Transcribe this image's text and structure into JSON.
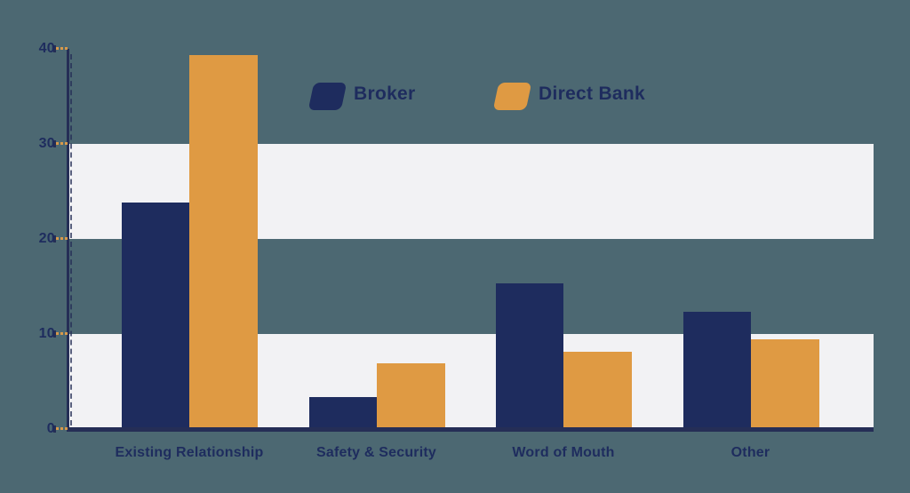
{
  "chart_data": {
    "type": "bar",
    "title": "",
    "xlabel": "",
    "ylabel": "",
    "categories": [
      "Existing Relationship",
      "Safety & Security",
      "Word of Mouth",
      "Other"
    ],
    "series": [
      {
        "name": "Broker",
        "color": "#1e2c5e",
        "values": [
          23.8,
          3.4,
          15.3,
          12.3
        ]
      },
      {
        "name": "Direct Bank",
        "color": "#df9a43",
        "values": [
          39.3,
          6.9,
          8.1,
          9.4
        ]
      }
    ],
    "ylim": [
      0,
      40
    ],
    "yticks": [
      0,
      10,
      20,
      30,
      40
    ],
    "grid": "alternating-horizontal-bands",
    "band_value_ranges": [
      [
        20,
        30
      ],
      [
        0,
        10
      ]
    ],
    "legend_position": "top-center",
    "colors": {
      "background": "#4c6872",
      "band": "#f2f2f4",
      "axis": "#252e56",
      "tick": "#d8994a",
      "label_text": "#1e2c5e"
    }
  }
}
